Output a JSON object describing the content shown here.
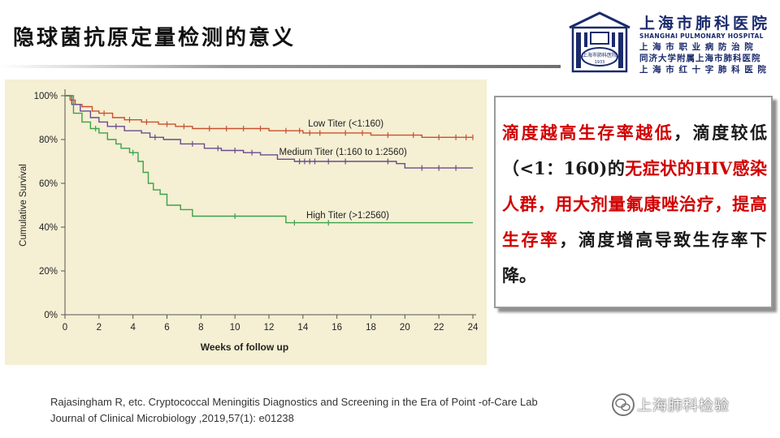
{
  "slide": {
    "title": "隐球菌抗原定量检测的意义"
  },
  "logo": {
    "name_cn": "上海市肺科医院",
    "name_en": "SHANGHAI PULMONARY HOSPITAL",
    "line1": "上 海 市 职 业 病 防 治 院",
    "line2": "同济大学附属上海市肺科医院",
    "line3": "上 海 市 红 十 字 肺 科 医 院",
    "emblem_text": "上海市肺科医院",
    "emblem_year": "1933"
  },
  "textbox": {
    "p1": "滴度越高生存率越低",
    "p2": "，滴度较低（<1：160)的",
    "p3": "无症状的HIV感染人群，用大剂量氟康唑治疗，提高生存率",
    "p4": "，滴度增高导致生存率下降。"
  },
  "citation": {
    "line1": "Rajasingham R, etc. Cryptococcal Meningitis Diagnostics and Screening in the Era of Point -of-Care Lab",
    "line2": "Journal of Clinical Microbiology ,2019,57(1): e01238"
  },
  "watermark": {
    "text": "上海肺科检验"
  },
  "colors": {
    "low": "#c8502e",
    "medium": "#6a4c8c",
    "high": "#3aa24a",
    "panel": "#f5efd3",
    "emphasis": "#d10000"
  },
  "chart_data": {
    "type": "line",
    "xlabel": "Weeks of follow up",
    "ylabel": "Cumulative Survival",
    "xlim": [
      0,
      24
    ],
    "ylim": [
      0,
      100
    ],
    "xticks": [
      0,
      2,
      4,
      6,
      8,
      10,
      12,
      14,
      16,
      18,
      20,
      22,
      24
    ],
    "yticks": [
      0,
      20,
      40,
      60,
      80,
      100
    ],
    "ytick_labels": [
      "0%",
      "20%",
      "40%",
      "60%",
      "80%",
      "100%"
    ],
    "series": [
      {
        "name": "Low Titer (<1:160)",
        "color": "#c8502e",
        "steps": [
          [
            0,
            100
          ],
          [
            0.3,
            98
          ],
          [
            0.6,
            96
          ],
          [
            1.0,
            95
          ],
          [
            1.6,
            93
          ],
          [
            2.0,
            92
          ],
          [
            2.8,
            90
          ],
          [
            3.5,
            89
          ],
          [
            4.5,
            88
          ],
          [
            5.5,
            87
          ],
          [
            6.5,
            86
          ],
          [
            7.5,
            85
          ],
          [
            9.0,
            85
          ],
          [
            11.0,
            85
          ],
          [
            12.0,
            84
          ],
          [
            13.0,
            84
          ],
          [
            14.0,
            83
          ],
          [
            16.0,
            83
          ],
          [
            18.0,
            82
          ],
          [
            20.0,
            82
          ],
          [
            21.0,
            81
          ],
          [
            24.0,
            81
          ]
        ],
        "censor": [
          2.3,
          3.8,
          4.8,
          6.0,
          7.0,
          8.5,
          9.5,
          10.5,
          11.5,
          13.0,
          13.8,
          14.4,
          15.0,
          16.5,
          17.5,
          19.0,
          20.5,
          22.0,
          23.0,
          23.6,
          24.0
        ]
      },
      {
        "name": "Medium Titer (1:160 to 1:2560)",
        "color": "#6a4c8c",
        "steps": [
          [
            0,
            100
          ],
          [
            0.4,
            96
          ],
          [
            0.9,
            93
          ],
          [
            1.5,
            90
          ],
          [
            2.0,
            88
          ],
          [
            2.5,
            86
          ],
          [
            3.5,
            84
          ],
          [
            4.5,
            83
          ],
          [
            5.0,
            81
          ],
          [
            5.8,
            80
          ],
          [
            6.8,
            78
          ],
          [
            8.2,
            76
          ],
          [
            9.2,
            75
          ],
          [
            10.5,
            74
          ],
          [
            11.5,
            73
          ],
          [
            12.5,
            71
          ],
          [
            13.5,
            70
          ],
          [
            15.5,
            70
          ],
          [
            18.0,
            70
          ],
          [
            19.5,
            69
          ],
          [
            20.0,
            67
          ],
          [
            24.0,
            67
          ]
        ],
        "censor": [
          3.0,
          5.3,
          7.5,
          9.0,
          10.0,
          11.0,
          13.8,
          14.1,
          14.4,
          14.7,
          15.5,
          16.5,
          19.0,
          21.0,
          22.0,
          23.0
        ]
      },
      {
        "name": "High Titer (>1:2560)",
        "color": "#3aa24a",
        "steps": [
          [
            0,
            100
          ],
          [
            0.5,
            92
          ],
          [
            1.0,
            88
          ],
          [
            1.5,
            85
          ],
          [
            2.0,
            83
          ],
          [
            2.5,
            80
          ],
          [
            3.0,
            78
          ],
          [
            3.3,
            76
          ],
          [
            3.8,
            74
          ],
          [
            4.3,
            70
          ],
          [
            4.6,
            65
          ],
          [
            4.9,
            60
          ],
          [
            5.2,
            57
          ],
          [
            5.6,
            55
          ],
          [
            6.0,
            50
          ],
          [
            6.8,
            48
          ],
          [
            7.5,
            45
          ],
          [
            13.0,
            45
          ],
          [
            13.0,
            42
          ],
          [
            24.0,
            42
          ]
        ],
        "censor": [
          1.8,
          4.0,
          10.0,
          13.5,
          15.5
        ]
      }
    ],
    "annotations": [
      {
        "text": "Low Titer (<1:160)",
        "x": 14.3,
        "y": 86
      },
      {
        "text": "Medium Titer (1:160 to 1:2560)",
        "x": 12.6,
        "y": 73
      },
      {
        "text": "High Titer (>1:2560)",
        "x": 14.2,
        "y": 44
      }
    ]
  }
}
